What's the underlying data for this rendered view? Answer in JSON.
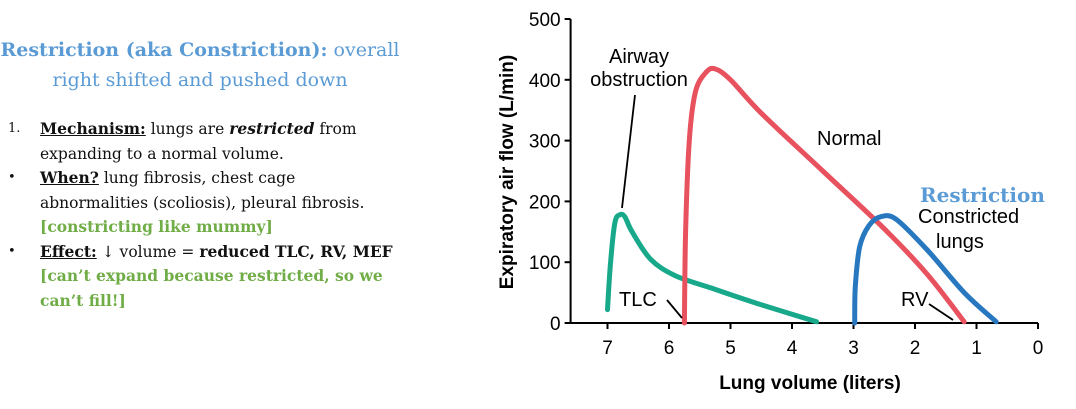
{
  "text": {
    "heading_bold": "Restriction (aka Constriction):",
    "heading_rest": " overall right shifted and pushed down",
    "items": [
      {
        "marker": "1.",
        "label": "Mechanism:",
        "t1": " lungs are ",
        "emph": "restricted",
        "t2": " from expanding to a normal volume."
      },
      {
        "marker": "•",
        "label": "When?",
        "t1": " lung fibrosis, chest cage abnormalities (scoliosis), pleural fibrosis. ",
        "green": "[constricting like mummy]"
      },
      {
        "marker": "•",
        "label": "Effect:",
        "t1": " ↓ volume = ",
        "bold": "reduced TLC, RV, MEF",
        "green": "[can’t expand because restricted, so we can’t fill!]"
      }
    ]
  },
  "chart_data": {
    "type": "line",
    "xlabel": "Lung volume (liters)",
    "ylabel": "Expiratory air flow (L/min)",
    "xlim": [
      7.6,
      0
    ],
    "ylim": [
      0,
      500
    ],
    "x_ticks": [
      7,
      6,
      5,
      4,
      3,
      2,
      1,
      0
    ],
    "y_ticks": [
      0,
      100,
      200,
      300,
      400,
      500
    ],
    "series": [
      {
        "name": "Airway obstruction",
        "color": "#17a98a",
        "points": [
          [
            7.0,
            22
          ],
          [
            6.95,
            100
          ],
          [
            6.88,
            165
          ],
          [
            6.8,
            178
          ],
          [
            6.72,
            175
          ],
          [
            6.6,
            150
          ],
          [
            6.3,
            105
          ],
          [
            5.9,
            78
          ],
          [
            5.3,
            57
          ],
          [
            4.5,
            30
          ],
          [
            3.6,
            2
          ]
        ]
      },
      {
        "name": "Normal",
        "color": "#e8515e",
        "points": [
          [
            5.75,
            0
          ],
          [
            5.73,
            150
          ],
          [
            5.67,
            300
          ],
          [
            5.57,
            380
          ],
          [
            5.4,
            412
          ],
          [
            5.25,
            418
          ],
          [
            5.0,
            400
          ],
          [
            4.5,
            345
          ],
          [
            3.5,
            250
          ],
          [
            2.5,
            155
          ],
          [
            1.8,
            80
          ],
          [
            1.2,
            2
          ]
        ]
      },
      {
        "name": "Constricted lungs",
        "color": "#2878c0",
        "points": [
          [
            2.98,
            0
          ],
          [
            2.97,
            60
          ],
          [
            2.9,
            125
          ],
          [
            2.75,
            160
          ],
          [
            2.55,
            175
          ],
          [
            2.3,
            170
          ],
          [
            1.8,
            120
          ],
          [
            1.2,
            50
          ],
          [
            0.68,
            2
          ]
        ]
      }
    ],
    "annotations": {
      "airway": [
        "Airway",
        "obstruction"
      ],
      "normal": "Normal",
      "constricted": [
        "Constricted",
        "lungs"
      ],
      "tlc": "TLC",
      "rv": "RV",
      "restriction": "Restriction"
    }
  }
}
